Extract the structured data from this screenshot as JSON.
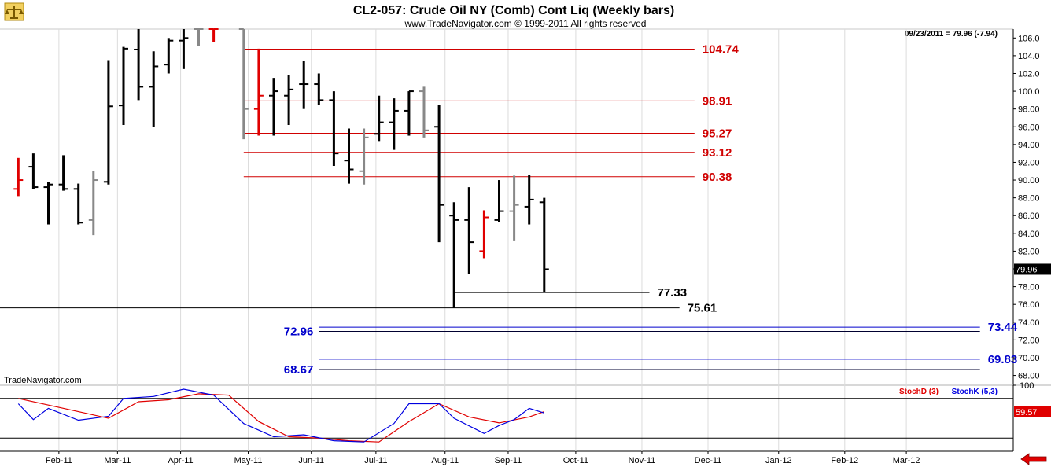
{
  "header": {
    "title": "CL2-057:  Crude Oil NY (Comb) Cont Liq  (Weekly bars)",
    "copyright": "www.TradeNavigator.com © 1999-2011 All rights reserved",
    "last_quote": "09/23/2011 = 79.96 (-7.94)",
    "watermark": "TradeNavigator.com",
    "logo_icon": "scales-logo-icon",
    "scroll_arrow_icon": "left-arrow-icon"
  },
  "colors": {
    "up": "#000000",
    "down": "#e00000",
    "neutral": "#888888",
    "resistance": "#d00000",
    "support": "#000000",
    "projection": "#0000cc",
    "stoch_d": "#e00000",
    "stoch_k": "#0000e0"
  },
  "chart_data": [
    {
      "type": "ohlc",
      "title": "CL2-057:  Crude Oil NY (Comb) Cont Liq  (Weekly bars)",
      "y_axis": {
        "min": 66.9,
        "max": 107.0,
        "ticks": [
          68,
          70,
          72,
          74,
          76,
          78,
          80,
          82,
          84,
          86,
          88,
          90,
          92,
          94,
          96,
          98,
          100,
          102,
          104,
          106
        ]
      },
      "y_tick_labels": [
        "68.00",
        "70.00",
        "72.00",
        "74.00",
        "76.00",
        "78.00",
        "80.00",
        "82.00",
        "84.00",
        "86.00",
        "88.00",
        "90.00",
        "92.00",
        "94.00",
        "96.00",
        "98.00",
        "100.0",
        "102.0",
        "104.0",
        "106.0"
      ],
      "last_price_label": "79.96",
      "last_price": 79.96,
      "x_months": [
        "Feb-11",
        "Mar-11",
        "Apr-11",
        "May-11",
        "Jun-11",
        "Jul-11",
        "Aug-11",
        "Sep-11",
        "Oct-11",
        "Nov-11",
        "Dec-11",
        "Jan-12",
        "Feb-12",
        "Mar-12"
      ],
      "bars": [
        {
          "week": 0,
          "open": 89.0,
          "high": 92.5,
          "low": 88.2,
          "close": 90.0,
          "color": "down"
        },
        {
          "week": 1,
          "open": 91.5,
          "high": 93.0,
          "low": 89.0,
          "close": 89.2,
          "color": "up"
        },
        {
          "week": 2,
          "open": 89.2,
          "high": 89.8,
          "low": 85.0,
          "close": 89.5,
          "color": "up"
        },
        {
          "week": 3,
          "open": 89.5,
          "high": 92.8,
          "low": 88.8,
          "close": 89.0,
          "color": "up"
        },
        {
          "week": 4,
          "open": 89.0,
          "high": 89.6,
          "low": 85.0,
          "close": 85.2,
          "color": "up"
        },
        {
          "week": 5,
          "open": 85.5,
          "high": 91.0,
          "low": 83.8,
          "close": 90.0,
          "color": "neutral"
        },
        {
          "week": 6,
          "open": 89.8,
          "high": 103.5,
          "low": 89.5,
          "close": 98.3,
          "color": "up"
        },
        {
          "week": 7,
          "open": 98.4,
          "high": 105.0,
          "low": 96.2,
          "close": 104.8,
          "color": "up"
        },
        {
          "week": 8,
          "open": 104.7,
          "high": 107.0,
          "low": 99.0,
          "close": 100.5,
          "color": "up"
        },
        {
          "week": 9,
          "open": 100.5,
          "high": 104.5,
          "low": 96.0,
          "close": 102.8,
          "color": "up"
        },
        {
          "week": 10,
          "open": 103.0,
          "high": 106.0,
          "low": 102.0,
          "close": 105.7,
          "color": "up"
        },
        {
          "week": 11,
          "open": 105.7,
          "high": 107.0,
          "low": 102.5,
          "close": 106.0,
          "color": "up"
        },
        {
          "week": 12,
          "open": 107.0,
          "high": 107.0,
          "low": 105.1,
          "close": 107.0,
          "color": "neutral"
        },
        {
          "week": 13,
          "open": 107.0,
          "high": 107.0,
          "low": 105.5,
          "close": 107.0,
          "color": "down"
        },
        {
          "week": 15,
          "open": 107.0,
          "high": 107.0,
          "low": 94.6,
          "close": 98.0,
          "color": "neutral"
        },
        {
          "week": 16,
          "open": 98.0,
          "high": 104.8,
          "low": 95.0,
          "close": 99.5,
          "color": "down"
        },
        {
          "week": 17,
          "open": 99.5,
          "high": 101.5,
          "low": 95.0,
          "close": 100.0,
          "color": "up"
        },
        {
          "week": 18,
          "open": 99.5,
          "high": 101.8,
          "low": 96.2,
          "close": 100.2,
          "color": "up"
        },
        {
          "week": 19,
          "open": 100.8,
          "high": 103.4,
          "low": 98.0,
          "close": 100.8,
          "color": "up"
        },
        {
          "week": 20,
          "open": 100.8,
          "high": 102.0,
          "low": 98.5,
          "close": 99.0,
          "color": "up"
        },
        {
          "week": 21,
          "open": 99.0,
          "high": 100.0,
          "low": 91.6,
          "close": 93.0,
          "color": "up"
        },
        {
          "week": 22,
          "open": 92.2,
          "high": 95.8,
          "low": 89.6,
          "close": 91.2,
          "color": "up"
        },
        {
          "week": 23,
          "open": 91.0,
          "high": 95.8,
          "low": 89.5,
          "close": 94.8,
          "color": "neutral"
        },
        {
          "week": 24,
          "open": 95.2,
          "high": 99.5,
          "low": 94.4,
          "close": 96.5,
          "color": "up"
        },
        {
          "week": 25,
          "open": 96.5,
          "high": 99.2,
          "low": 93.4,
          "close": 97.8,
          "color": "up"
        },
        {
          "week": 26,
          "open": 97.8,
          "high": 100.0,
          "low": 95.0,
          "close": 100.0,
          "color": "up"
        },
        {
          "week": 27,
          "open": 100.0,
          "high": 100.5,
          "low": 94.8,
          "close": 95.6,
          "color": "neutral"
        },
        {
          "week": 28,
          "open": 96.0,
          "high": 98.5,
          "low": 83.0,
          "close": 87.2,
          "color": "up"
        },
        {
          "week": 29,
          "open": 86.0,
          "high": 87.5,
          "low": 75.6,
          "close": 85.5,
          "color": "up"
        },
        {
          "week": 30,
          "open": 85.5,
          "high": 89.2,
          "low": 79.4,
          "close": 83.0,
          "color": "up"
        },
        {
          "week": 31,
          "open": 82.0,
          "high": 86.6,
          "low": 81.2,
          "close": 85.8,
          "color": "down"
        },
        {
          "week": 32,
          "open": 85.5,
          "high": 90.0,
          "low": 85.3,
          "close": 86.5,
          "color": "up"
        },
        {
          "week": 33,
          "open": 86.5,
          "high": 90.5,
          "low": 83.2,
          "close": 87.2,
          "color": "neutral"
        },
        {
          "week": 34,
          "open": 87.0,
          "high": 90.6,
          "low": 85.0,
          "close": 87.8,
          "color": "up"
        },
        {
          "week": 35,
          "open": 87.5,
          "high": 88.0,
          "low": 77.3,
          "close": 79.96,
          "color": "up"
        }
      ],
      "levels": [
        {
          "value": 104.74,
          "label": "104.74",
          "kind": "resistance",
          "from_week": 15,
          "to_week": 45
        },
        {
          "value": 98.91,
          "label": "98.91",
          "kind": "resistance",
          "from_week": 15,
          "to_week": 45
        },
        {
          "value": 95.27,
          "label": "95.27",
          "kind": "resistance",
          "from_week": 15,
          "to_week": 45
        },
        {
          "value": 93.12,
          "label": "93.12",
          "kind": "resistance",
          "from_week": 15,
          "to_week": 45
        },
        {
          "value": 90.38,
          "label": "90.38",
          "kind": "resistance",
          "from_week": 15,
          "to_week": 45
        },
        {
          "value": 77.33,
          "label": "77.33",
          "kind": "support",
          "from_week": 29,
          "to_week": 42
        },
        {
          "value": 75.61,
          "label": "75.61",
          "kind": "support",
          "from_week": -2,
          "to_week": 44
        }
      ],
      "projections": [
        {
          "low": 72.96,
          "high": 73.44,
          "low_label": "72.96",
          "high_label": "73.44",
          "from_week": 20,
          "to_week": 64
        },
        {
          "low": 68.67,
          "high": 69.83,
          "low_label": "68.67",
          "high_label": "69.83",
          "from_week": 20,
          "to_week": 64
        }
      ]
    },
    {
      "type": "line",
      "title": "Stochastic",
      "y_axis": {
        "min": 0,
        "max": 100,
        "ticks": [
          100
        ],
        "tick_labels": [
          "100"
        ]
      },
      "overbought": 80,
      "oversold": 20,
      "last_value_label": "59.57",
      "last_value": 59.57,
      "series": [
        {
          "name": "StochD (3)",
          "weeks": [
            0,
            2,
            4,
            6,
            8,
            10,
            12,
            14,
            16,
            18,
            20,
            22,
            24,
            26,
            28,
            30,
            32,
            34,
            35
          ],
          "values": [
            80,
            70,
            60,
            50,
            75,
            78,
            87,
            85,
            45,
            22,
            20,
            16,
            14,
            45,
            72,
            52,
            43,
            52,
            60
          ]
        },
        {
          "name": "StochK (5,3)",
          "weeks": [
            0,
            1,
            2,
            4,
            6,
            7,
            9,
            11,
            13,
            15,
            17,
            19,
            21,
            23,
            25,
            26,
            28,
            29,
            31,
            32,
            33,
            34,
            35
          ],
          "values": [
            72,
            48,
            65,
            47,
            53,
            80,
            83,
            94,
            85,
            42,
            22,
            25,
            16,
            14,
            42,
            72,
            72,
            50,
            27,
            39,
            48,
            65,
            58
          ]
        }
      ]
    }
  ]
}
